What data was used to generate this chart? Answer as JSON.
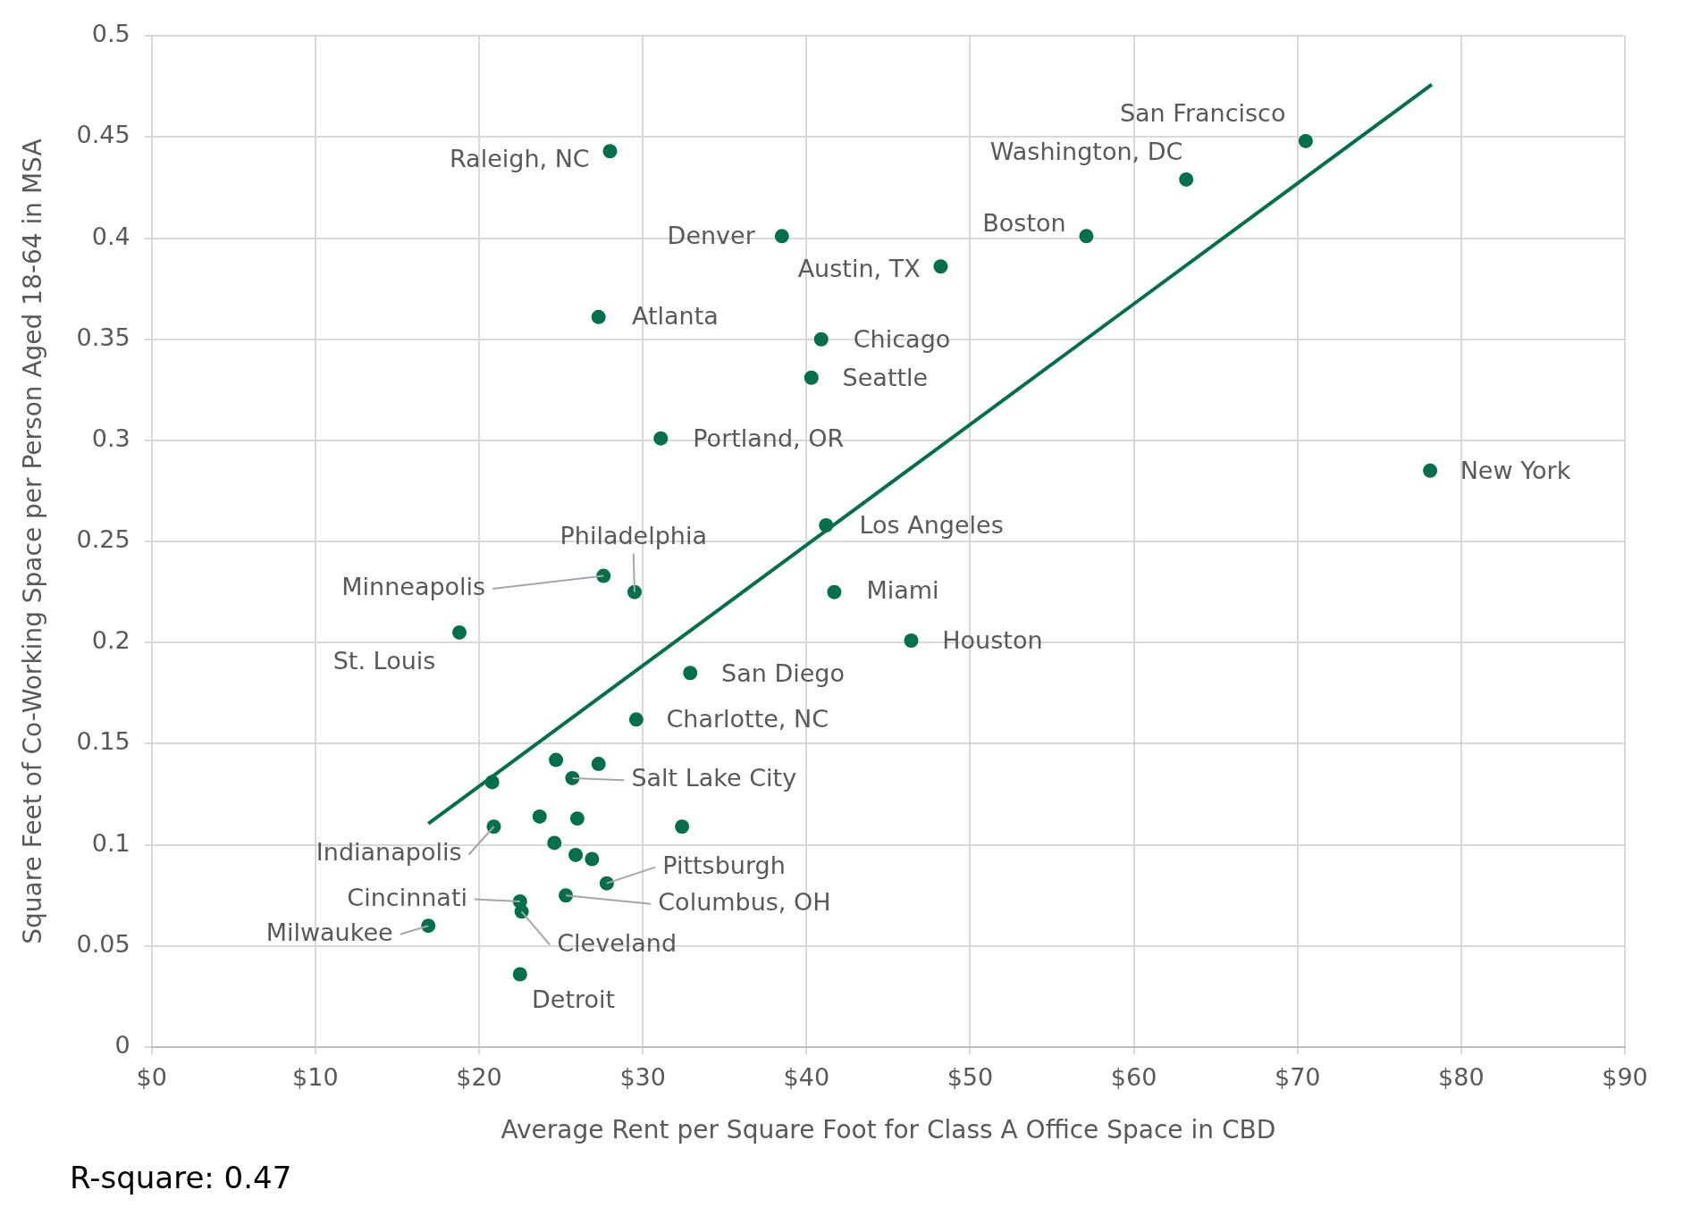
{
  "chart_data": {
    "type": "scatter",
    "xlabel": "Average Rent per Square Foot for Class A Office Space in CBD",
    "ylabel": "Square Feet of Co-Working Space per Person Aged 18-64 in MSA",
    "xlim": [
      0,
      90
    ],
    "xticks": [
      {
        "value": 0,
        "label": "$0"
      },
      {
        "value": 10,
        "label": "$10"
      },
      {
        "value": 20,
        "label": "$20"
      },
      {
        "value": 30,
        "label": "$30"
      },
      {
        "value": 40,
        "label": "$40"
      },
      {
        "value": 50,
        "label": "$50"
      },
      {
        "value": 60,
        "label": "$60"
      },
      {
        "value": 70,
        "label": "$70"
      },
      {
        "value": 80,
        "label": "$80"
      },
      {
        "value": 90,
        "label": "$90"
      }
    ],
    "ylim": [
      0,
      0.5
    ],
    "yticks": [
      0,
      0.05,
      0.1,
      0.15,
      0.2,
      0.25,
      0.3,
      0.35,
      0.4,
      0.45,
      0.5
    ],
    "grid": true,
    "legend": false,
    "marker": "circle",
    "series": [
      {
        "type": "scatter",
        "color": "#00704a",
        "x": [
          70.5,
          63.2,
          57.1,
          48.2,
          28.0,
          38.5,
          27.3,
          40.9,
          40.3,
          31.1,
          78.1,
          41.2,
          41.7,
          46.4,
          27.6,
          29.5,
          18.8,
          32.9,
          29.6,
          24.7,
          27.3,
          20.8,
          25.7,
          20.9,
          23.7,
          26.0,
          32.4,
          24.6,
          25.9,
          26.9,
          27.8,
          25.3,
          22.5,
          22.6,
          16.9,
          22.5
        ],
        "values": [
          0.448,
          0.429,
          0.401,
          0.386,
          0.443,
          0.401,
          0.361,
          0.35,
          0.331,
          0.301,
          0.285,
          0.258,
          0.225,
          0.201,
          0.233,
          0.225,
          0.205,
          0.185,
          0.162,
          0.142,
          0.14,
          0.131,
          0.133,
          0.109,
          0.114,
          0.113,
          0.109,
          0.101,
          0.095,
          0.093,
          0.081,
          0.075,
          0.072,
          0.067,
          0.06,
          0.036
        ]
      },
      {
        "type": "line",
        "color": "#00704a",
        "marker": "none",
        "x": [
          16.9,
          78.2
        ],
        "values": [
          0.1105,
          0.476
        ]
      }
    ],
    "annotations": [
      {
        "text": "San Francisco",
        "x": 70.5,
        "y": 0.448
      },
      {
        "text": "Washington, DC",
        "x": 63.2,
        "y": 0.429
      },
      {
        "text": "Boston",
        "x": 57.1,
        "y": 0.401
      },
      {
        "text": "Austin, TX",
        "x": 48.2,
        "y": 0.386
      },
      {
        "text": "Raleigh, NC",
        "x": 28.0,
        "y": 0.443
      },
      {
        "text": "Denver",
        "x": 38.5,
        "y": 0.401
      },
      {
        "text": "Atlanta",
        "x": 27.3,
        "y": 0.361
      },
      {
        "text": "Chicago",
        "x": 40.9,
        "y": 0.35
      },
      {
        "text": "Seattle",
        "x": 40.3,
        "y": 0.331
      },
      {
        "text": "Portland, OR",
        "x": 31.1,
        "y": 0.301
      },
      {
        "text": "New York",
        "x": 78.1,
        "y": 0.285
      },
      {
        "text": "Los Angeles",
        "x": 41.2,
        "y": 0.258
      },
      {
        "text": "Miami",
        "x": 41.7,
        "y": 0.225
      },
      {
        "text": "Houston",
        "x": 46.4,
        "y": 0.201
      },
      {
        "text": "Philadelphia",
        "x": 29.5,
        "y": 0.225
      },
      {
        "text": "Minneapolis",
        "x": 27.6,
        "y": 0.233
      },
      {
        "text": "St. Louis",
        "x": 18.8,
        "y": 0.205
      },
      {
        "text": "San Diego",
        "x": 32.9,
        "y": 0.185
      },
      {
        "text": "Charlotte, NC",
        "x": 29.6,
        "y": 0.162
      },
      {
        "text": "Salt Lake City",
        "x": 25.7,
        "y": 0.133
      },
      {
        "text": "Indianapolis",
        "x": 20.9,
        "y": 0.109
      },
      {
        "text": "Pittsburgh",
        "x": 27.8,
        "y": 0.081
      },
      {
        "text": "Columbus, OH",
        "x": 25.3,
        "y": 0.075
      },
      {
        "text": "Cincinnati",
        "x": 22.5,
        "y": 0.072
      },
      {
        "text": "Cleveland",
        "x": 22.6,
        "y": 0.067
      },
      {
        "text": "Milwaukee",
        "x": 16.9,
        "y": 0.06
      },
      {
        "text": "Detroit",
        "x": 22.5,
        "y": 0.036
      },
      "R-square: 0.47"
    ]
  }
}
